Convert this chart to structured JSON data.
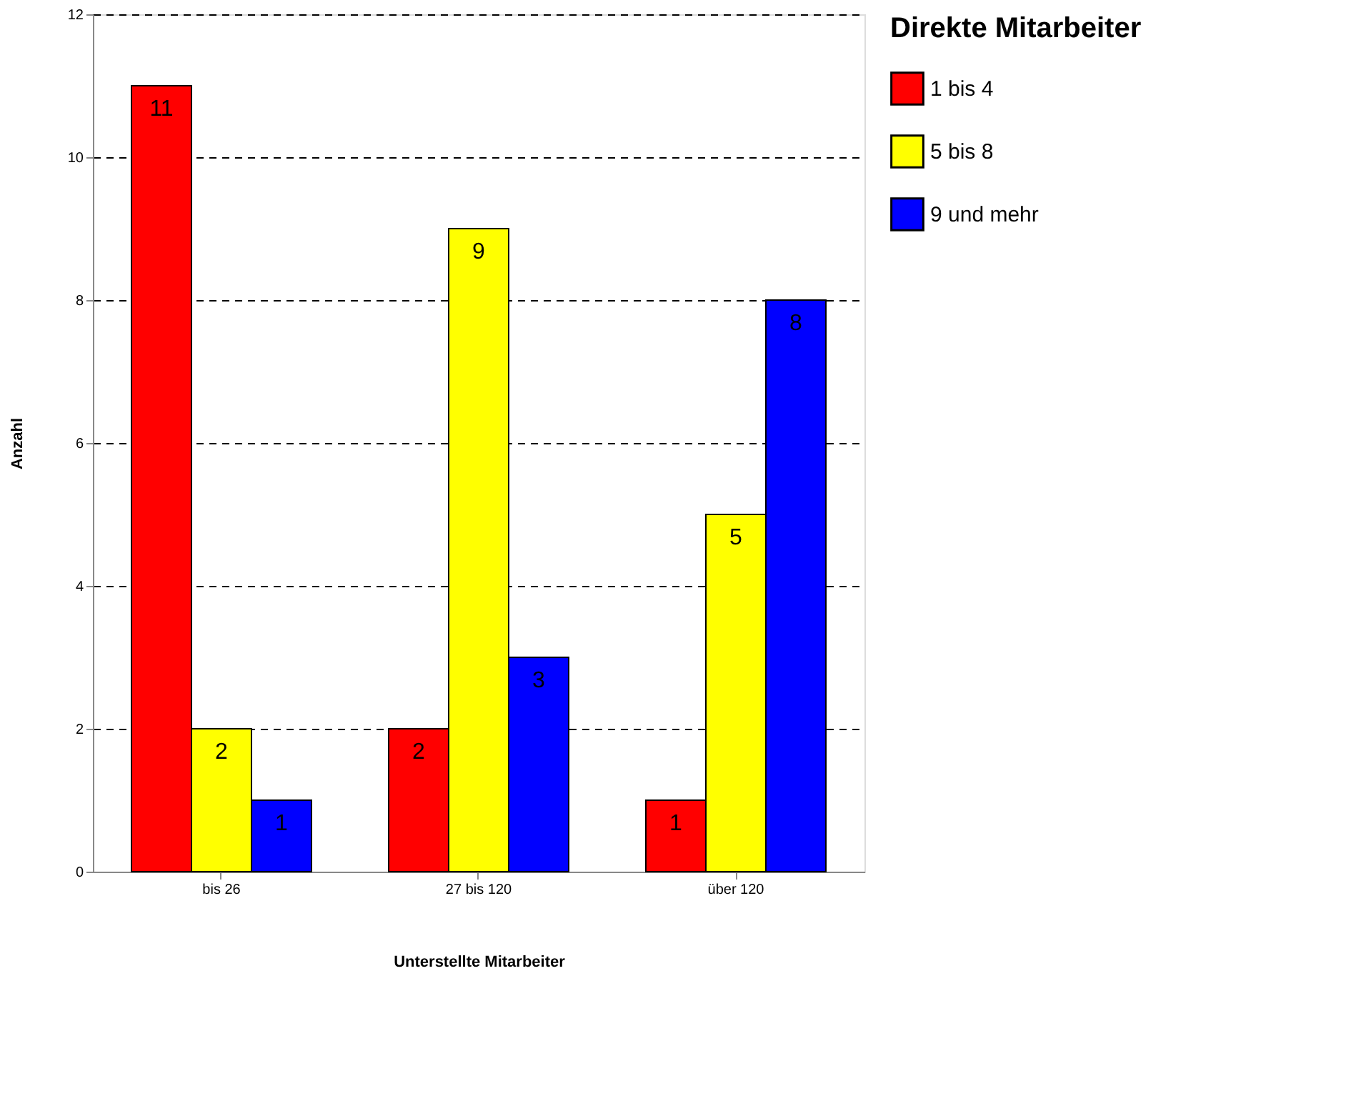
{
  "chart_data": {
    "type": "bar",
    "xlabel": "Unterstellte Mitarbeiter",
    "ylabel": "Anzahl",
    "legend_title": "Direkte Mitarbeiter",
    "categories": [
      "bis 26",
      "27 bis 120",
      "über 120"
    ],
    "series": [
      {
        "name": "1 bis 4",
        "color": "#ff0000",
        "values": [
          11,
          2,
          1
        ]
      },
      {
        "name": "5 bis 8",
        "color": "#ffff00",
        "values": [
          2,
          9,
          5
        ]
      },
      {
        "name": "9 und mehr",
        "color": "#0000ff",
        "values": [
          1,
          3,
          8
        ]
      }
    ],
    "ylim": [
      0,
      12
    ],
    "yticks": [
      0,
      2,
      4,
      6,
      8,
      10,
      12
    ],
    "grid": "y",
    "legend": "right",
    "data_labels": true
  }
}
